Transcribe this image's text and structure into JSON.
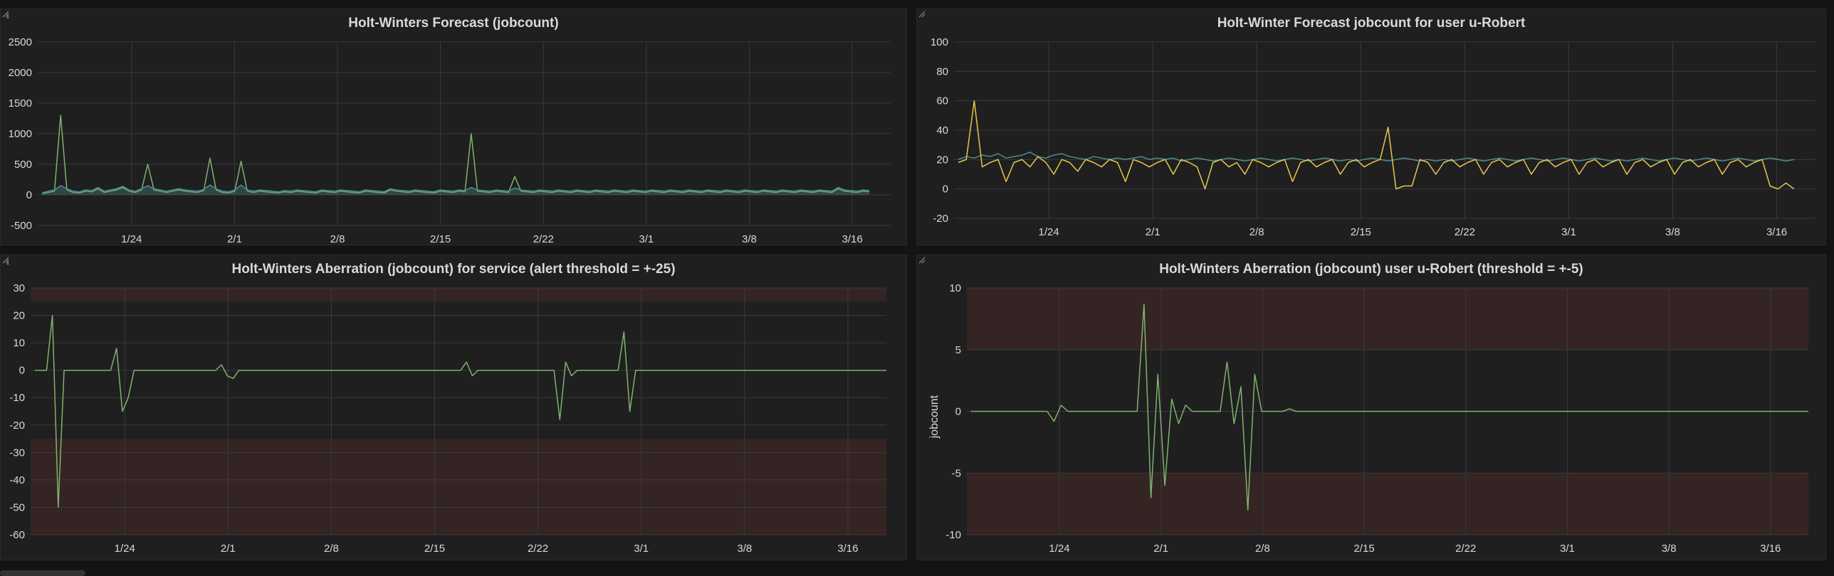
{
  "colors": {
    "background": "#141414",
    "panel": "#1f1f20",
    "grid": "#3a3a3c",
    "text": "#d8d9da",
    "green": "#7eb26d",
    "teal": "#4f8f90",
    "yellow": "#e5c94a",
    "threshold_band": "#3a2626"
  },
  "panels": [
    {
      "title": "Holt-Winters Forecast (jobcount)",
      "info_icon": "i",
      "chart_data": {
        "type": "line",
        "series": [
          {
            "color": "green",
            "values": [
              20,
              40,
              60,
              1300,
              80,
              40,
              30,
              60,
              50,
              100,
              40,
              60,
              80,
              120,
              60,
              40,
              80,
              500,
              80,
              60,
              40,
              60,
              80,
              60,
              50,
              40,
              70,
              600,
              80,
              40,
              30,
              60,
              550,
              60,
              40,
              60,
              50,
              40,
              30,
              50,
              40,
              60,
              50,
              40,
              30,
              60,
              50,
              40,
              60,
              50,
              40,
              30,
              60,
              50,
              40,
              30,
              80,
              60,
              50,
              40,
              60,
              50,
              40,
              30,
              60,
              50,
              40,
              60,
              50,
              1000,
              60,
              50,
              40,
              60,
              50,
              40,
              300,
              60,
              50,
              40,
              60,
              50,
              40,
              60,
              50,
              40,
              60,
              50,
              40,
              60,
              50,
              40,
              60,
              50,
              40,
              60,
              50,
              40,
              60,
              50,
              40,
              60,
              50,
              40,
              60,
              50,
              40,
              60,
              50,
              40,
              60,
              50,
              40,
              60,
              50,
              40,
              60,
              50,
              40,
              60,
              50,
              40,
              60,
              50,
              40,
              60,
              50,
              40,
              100,
              60,
              50,
              40,
              60,
              50
            ]
          },
          {
            "color": "teal",
            "values": [
              30,
              60,
              80,
              150,
              100,
              60,
              50,
              80,
              70,
              120,
              60,
              80,
              100,
              140,
              80,
              60,
              100,
              150,
              100,
              80,
              60,
              80,
              100,
              80,
              70,
              60,
              90,
              160,
              100,
              60,
              50,
              80,
              160,
              80,
              60,
              80,
              70,
              60,
              50,
              70,
              60,
              80,
              70,
              60,
              50,
              80,
              70,
              60,
              80,
              70,
              60,
              50,
              80,
              70,
              60,
              50,
              100,
              80,
              70,
              60,
              80,
              70,
              60,
              50,
              80,
              70,
              60,
              80,
              70,
              120,
              80,
              70,
              60,
              80,
              70,
              60,
              110,
              80,
              70,
              60,
              80,
              70,
              60,
              80,
              70,
              60,
              80,
              70,
              60,
              80,
              70,
              60,
              80,
              70,
              60,
              80,
              70,
              60,
              80,
              70,
              60,
              80,
              70,
              60,
              80,
              70,
              60,
              80,
              70,
              60,
              80,
              70,
              60,
              80,
              70,
              60,
              80,
              70,
              60,
              80,
              70,
              60,
              80,
              70,
              60,
              80,
              70,
              60,
              120,
              80,
              70,
              60,
              80,
              70
            ]
          }
        ],
        "ylim": [
          -500,
          2500
        ],
        "yticks": [
          "2500",
          "2000",
          "1500",
          "1000",
          "500",
          "0",
          "-500"
        ],
        "xticks": [
          "1/24",
          "2/1",
          "2/8",
          "2/15",
          "2/22",
          "3/1",
          "3/8",
          "3/16"
        ],
        "band": null
      }
    },
    {
      "title": "Holt-Winter Forecast jobcount for user u-Robert",
      "chart_data": {
        "type": "line",
        "series": [
          {
            "color": "teal",
            "values": [
              20,
              22,
              21,
              23,
              22,
              24,
              21,
              22,
              23,
              25,
              22,
              21,
              23,
              24,
              22,
              21,
              20,
              22,
              21,
              20,
              21,
              20,
              21,
              22,
              20,
              21,
              20,
              21,
              19,
              20,
              21,
              20,
              19,
              20,
              21,
              20,
              19,
              20,
              21,
              20,
              19,
              20,
              21,
              20,
              19,
              20,
              21,
              20,
              19,
              20,
              19,
              20,
              21,
              20,
              19,
              20,
              21,
              20,
              19,
              20,
              19,
              20,
              19,
              20,
              21,
              20,
              19,
              20,
              21,
              20,
              19,
              20,
              21,
              20,
              19,
              20,
              21,
              20,
              19,
              20,
              21,
              20,
              19,
              20,
              19,
              20,
              21,
              20,
              19,
              20,
              21,
              20,
              19,
              20,
              21,
              20,
              19,
              20,
              21,
              20,
              19,
              20,
              21,
              20,
              19,
              20
            ]
          },
          {
            "color": "yellow",
            "values": [
              18,
              20,
              60,
              15,
              18,
              20,
              5,
              18,
              20,
              15,
              22,
              18,
              10,
              20,
              18,
              12,
              20,
              18,
              15,
              20,
              18,
              5,
              20,
              18,
              15,
              18,
              20,
              10,
              20,
              18,
              15,
              0,
              18,
              20,
              15,
              18,
              10,
              20,
              18,
              15,
              18,
              20,
              5,
              18,
              20,
              15,
              18,
              20,
              10,
              18,
              20,
              15,
              18,
              20,
              42,
              0,
              2,
              2,
              20,
              18,
              10,
              18,
              20,
              15,
              18,
              20,
              10,
              18,
              20,
              15,
              18,
              20,
              10,
              18,
              20,
              15,
              18,
              20,
              10,
              18,
              20,
              15,
              18,
              20,
              10,
              18,
              20,
              15,
              18,
              20,
              10,
              18,
              20,
              15,
              18,
              20,
              10,
              18,
              20,
              15,
              18,
              20,
              2,
              0,
              4,
              0
            ]
          }
        ],
        "ylim": [
          -20,
          100
        ],
        "yticks": [
          "100",
          "80",
          "60",
          "40",
          "20",
          "0",
          "-20"
        ],
        "xticks": [
          "1/24",
          "2/1",
          "2/8",
          "2/15",
          "2/22",
          "3/1",
          "3/8",
          "3/16"
        ],
        "band": null
      }
    },
    {
      "title": "Holt-Winters Aberration (jobcount) for service (alert threshold = +-25)",
      "info_icon": "i",
      "chart_data": {
        "type": "line",
        "series": [
          {
            "color": "green",
            "values": [
              0,
              0,
              0,
              20,
              -50,
              0,
              0,
              0,
              0,
              0,
              0,
              0,
              0,
              0,
              8,
              -15,
              -10,
              0,
              0,
              0,
              0,
              0,
              0,
              0,
              0,
              0,
              0,
              0,
              0,
              0,
              0,
              0,
              2,
              -2,
              -3,
              0,
              0,
              0,
              0,
              0,
              0,
              0,
              0,
              0,
              0,
              0,
              0,
              0,
              0,
              0,
              0,
              0,
              0,
              0,
              0,
              0,
              0,
              0,
              0,
              0,
              0,
              0,
              0,
              0,
              0,
              0,
              0,
              0,
              0,
              0,
              0,
              0,
              0,
              0,
              3,
              -2,
              0,
              0,
              0,
              0,
              0,
              0,
              0,
              0,
              0,
              0,
              0,
              0,
              0,
              0,
              -18,
              3,
              -2,
              0,
              0,
              0,
              0,
              0,
              0,
              0,
              0,
              14,
              -15,
              0,
              0,
              0,
              0,
              0,
              0,
              0,
              0,
              0,
              0,
              0,
              0,
              0,
              0,
              0,
              0,
              0,
              0,
              0,
              0,
              0,
              0,
              0,
              0,
              0,
              0,
              0,
              0,
              0,
              0,
              0,
              0,
              0,
              0,
              0,
              0,
              0,
              0,
              0,
              0,
              0,
              0,
              0,
              0
            ]
          }
        ],
        "ylim": [
          -60,
          30
        ],
        "yticks": [
          "30",
          "20",
          "10",
          "0",
          "-10",
          "-20",
          "-30",
          "-40",
          "-50",
          "-60"
        ],
        "xticks": [
          "1/24",
          "2/1",
          "2/8",
          "2/15",
          "2/22",
          "3/1",
          "3/8",
          "3/16"
        ],
        "band": {
          "upper": 25,
          "lower": -25
        }
      }
    },
    {
      "title": "Holt-Winters Aberration (jobcount) user u-Robert (threshold = +-5)",
      "ylabel": "jobcount",
      "chart_data": {
        "type": "line",
        "series": [
          {
            "color": "green",
            "values": [
              0,
              0,
              0,
              0,
              0,
              0,
              0,
              0,
              0,
              0,
              0,
              0,
              -0.8,
              0.5,
              0,
              0,
              0,
              0,
              0,
              0,
              0,
              0,
              0,
              0,
              0,
              8.7,
              -7,
              3,
              -6,
              1,
              -1,
              0.5,
              0,
              0,
              0,
              0,
              0,
              4,
              -1,
              2,
              -8,
              3,
              0,
              0,
              0,
              0,
              0.2,
              0,
              0,
              0,
              0,
              0,
              0,
              0,
              0,
              0,
              0,
              0,
              0,
              0,
              0,
              0,
              0,
              0,
              0,
              0,
              0,
              0,
              0,
              0,
              0,
              0,
              0,
              0,
              0,
              0,
              0,
              0,
              0,
              0,
              0,
              0,
              0,
              0,
              0,
              0,
              0,
              0,
              0,
              0,
              0,
              0,
              0,
              0,
              0,
              0,
              0,
              0,
              0,
              0,
              0,
              0,
              0,
              0,
              0,
              0,
              0,
              0,
              0,
              0,
              0,
              0,
              0,
              0,
              0,
              0,
              0,
              0,
              0,
              0,
              0,
              0
            ]
          }
        ],
        "ylim": [
          -10,
          10
        ],
        "yticks": [
          "10",
          "5",
          "0",
          "-5",
          "-10"
        ],
        "xticks": [
          "1/24",
          "2/1",
          "2/8",
          "2/15",
          "2/22",
          "3/1",
          "3/8",
          "3/16"
        ],
        "band": {
          "upper": 5,
          "lower": -5
        }
      }
    }
  ]
}
